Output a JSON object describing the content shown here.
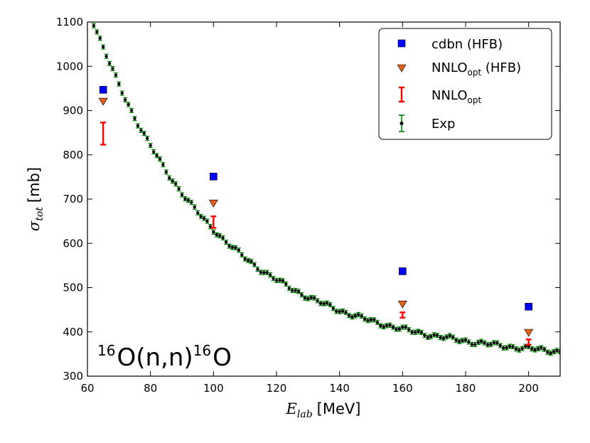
{
  "chart_data": {
    "type": "scatter",
    "title": "",
    "xlabel": {
      "symbol": "E",
      "sub": "lab",
      "unit": "[MeV]"
    },
    "ylabel": {
      "symbol": "σ",
      "sub": "tot",
      "unit": "[mb]"
    },
    "xlim": [
      60,
      210
    ],
    "ylim": [
      300,
      1100
    ],
    "xticks": [
      "60",
      "80",
      "100",
      "120",
      "140",
      "160",
      "180",
      "200"
    ],
    "yticks": [
      "300",
      "400",
      "500",
      "600",
      "700",
      "800",
      "900",
      "1000",
      "1100"
    ],
    "annotation": {
      "pre_sup": "16",
      "mid": "O(n,n)",
      "post_sup": "16",
      "end": "O"
    },
    "legend_position": "top-right",
    "series": [
      {
        "name": "cdbn (HFB)",
        "label": "cdbn (HFB)",
        "marker": "square",
        "color": "#0000ff",
        "points": [
          [
            65,
            947
          ],
          [
            100,
            751
          ],
          [
            160,
            537
          ],
          [
            200,
            457
          ]
        ]
      },
      {
        "name": "NNLO_opt (HFB)",
        "label_main": "NNLO",
        "label_sub": "opt",
        "label_suffix": " (HFB)",
        "marker": "triangle-down",
        "color": "#e0601c",
        "points": [
          [
            65,
            920
          ],
          [
            100,
            690
          ],
          [
            160,
            462
          ],
          [
            200,
            398
          ]
        ]
      },
      {
        "name": "NNLO_opt",
        "label_main": "NNLO",
        "label_sub": "opt",
        "marker": "errorbar",
        "color": "#ff0000",
        "points": [
          [
            65,
            848,
            25
          ],
          [
            100,
            648,
            13
          ],
          [
            160,
            438,
            6
          ],
          [
            200,
            377,
            6
          ]
        ]
      },
      {
        "name": "Exp",
        "label": "Exp",
        "marker": "dot-errorbar",
        "color": "#007f00",
        "curve_a": 3.04,
        "curve_b": 1.5,
        "curve_c": 0.2838,
        "x_start": 60,
        "x_end": 210,
        "x_step": 1.0
      }
    ]
  }
}
